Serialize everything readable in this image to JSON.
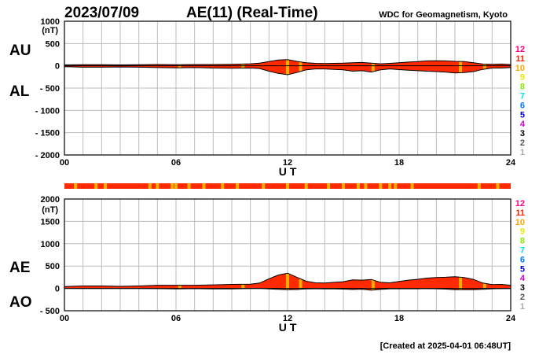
{
  "header": {
    "date": "2023/07/09",
    "title": "AE(11) (Real-Time)",
    "source": "WDC for Geomagnetism, Kyoto"
  },
  "footer": {
    "created": "[Created at 2025-04-01 06:48UT]"
  },
  "colors": {
    "fill": "#ff2a00",
    "outline": "#000000",
    "grid": "#bdbdbd",
    "flag_bar": "#ff2a00",
    "flag_mark": "#f0b000"
  },
  "station_count_legend": {
    "labels": [
      "12",
      "11",
      "10",
      "9",
      "8",
      "7",
      "6",
      "5",
      "4",
      "3",
      "2",
      "1"
    ],
    "colors": [
      "#ff0088",
      "#ff2200",
      "#ffa500",
      "#e8e800",
      "#88e800",
      "#00e0e0",
      "#0077ff",
      "#0000dd",
      "#cc00cc",
      "#000000",
      "#555555",
      "#aaaaaa"
    ]
  },
  "flag_bar_marks_ut": [
    0.6,
    1.7,
    2.2,
    4.6,
    5.0,
    5.8,
    6.0,
    6.7,
    7.5,
    8.5,
    9.3,
    10.7,
    12.0,
    13.0,
    14.2,
    15.0,
    15.8,
    16.2,
    17.0,
    17.5,
    17.8,
    18.7,
    22.3,
    23.3
  ],
  "chart_data": [
    {
      "type": "area",
      "name": "AU/AL",
      "labels": {
        "upper": "AU",
        "lower": "AL"
      },
      "unit": "(nT)",
      "xlabel": "U T",
      "xlim": [
        0,
        24
      ],
      "ylim": [
        -2000,
        1000
      ],
      "yticks": [
        1000,
        500,
        0,
        -500,
        -1000,
        -1500,
        -2000
      ],
      "ytick_labels": [
        "1000",
        "500",
        "0",
        "- 500",
        "- 1000",
        "- 1500",
        "- 2000"
      ],
      "xticks": [
        0,
        6,
        12,
        18,
        24
      ],
      "xtick_labels": [
        "00",
        "06",
        "12",
        "18",
        "24"
      ],
      "grid": true,
      "x": [
        0,
        1,
        2,
        3,
        4,
        5,
        6,
        7,
        8,
        9,
        10,
        10.5,
        11,
        11.5,
        12,
        12.5,
        13,
        13.5,
        14,
        14.5,
        15,
        15.5,
        16,
        16.5,
        17,
        17.5,
        18,
        18.5,
        19,
        19.5,
        20,
        20.5,
        21,
        21.5,
        22,
        22.5,
        23,
        23.5,
        24
      ],
      "series": [
        {
          "name": "AU",
          "values": [
            20,
            25,
            25,
            20,
            25,
            30,
            25,
            30,
            30,
            35,
            45,
            60,
            95,
            130,
            140,
            100,
            70,
            55,
            50,
            55,
            60,
            70,
            75,
            60,
            45,
            55,
            70,
            85,
            95,
            110,
            115,
            110,
            100,
            95,
            70,
            40,
            35,
            40,
            30
          ]
        },
        {
          "name": "AL",
          "values": [
            -20,
            -30,
            -30,
            -25,
            -30,
            -40,
            -45,
            -40,
            -50,
            -55,
            -50,
            -60,
            -120,
            -170,
            -200,
            -150,
            -90,
            -70,
            -70,
            -80,
            -90,
            -120,
            -110,
            -140,
            -90,
            -70,
            -85,
            -100,
            -110,
            -120,
            -130,
            -140,
            -160,
            -150,
            -130,
            -80,
            -50,
            -50,
            -40
          ]
        }
      ],
      "flag_marks_ut": [
        6.2,
        9.6,
        12.0,
        12.7,
        16.6,
        21.3,
        22.6
      ]
    },
    {
      "type": "area",
      "name": "AE/AO",
      "labels": {
        "upper": "AE",
        "lower": "AO"
      },
      "unit": "(nT)",
      "xlabel": "U T",
      "xlim": [
        0,
        24
      ],
      "ylim": [
        -500,
        2000
      ],
      "yticks": [
        2000,
        1500,
        1000,
        500,
        0,
        -500
      ],
      "ytick_labels": [
        "2000",
        "1500",
        "1000",
        "500",
        "0",
        "- 500"
      ],
      "xticks": [
        0,
        6,
        12,
        18,
        24
      ],
      "xtick_labels": [
        "00",
        "06",
        "12",
        "18",
        "24"
      ],
      "grid": true,
      "x": [
        0,
        1,
        2,
        3,
        4,
        5,
        6,
        7,
        8,
        9,
        10,
        10.5,
        11,
        11.5,
        12,
        12.5,
        13,
        13.5,
        14,
        14.5,
        15,
        15.5,
        16,
        16.5,
        17,
        17.5,
        18,
        18.5,
        19,
        19.5,
        20,
        20.5,
        21,
        21.5,
        22,
        22.5,
        23,
        23.5,
        24
      ],
      "series": [
        {
          "name": "AE",
          "values": [
            40,
            55,
            55,
            45,
            55,
            70,
            70,
            70,
            80,
            90,
            95,
            120,
            215,
            300,
            340,
            250,
            160,
            125,
            120,
            135,
            150,
            190,
            185,
            200,
            135,
            125,
            155,
            185,
            205,
            230,
            245,
            250,
            260,
            245,
            200,
            120,
            85,
            90,
            70
          ]
        },
        {
          "name": "AO",
          "values": [
            0,
            -3,
            -3,
            -3,
            -3,
            -5,
            -10,
            -5,
            -10,
            -10,
            -3,
            0,
            -13,
            -20,
            -30,
            -25,
            -10,
            -8,
            -10,
            -13,
            -15,
            -25,
            -18,
            -40,
            -23,
            -8,
            -8,
            -8,
            -8,
            -5,
            -8,
            -15,
            -30,
            -28,
            -30,
            -20,
            -8,
            -5,
            -5
          ]
        }
      ],
      "flag_marks_ut": [
        6.2,
        9.6,
        12.0,
        12.7,
        16.6,
        21.3,
        22.6
      ]
    }
  ]
}
